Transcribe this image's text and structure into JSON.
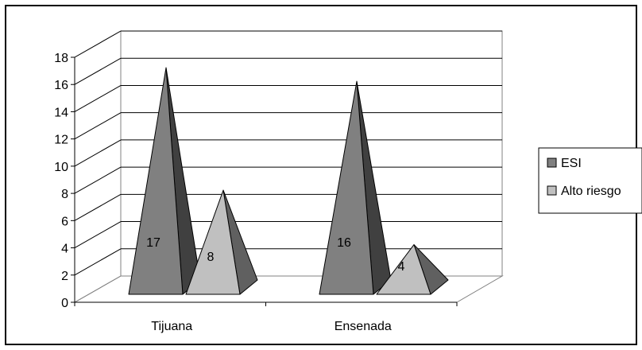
{
  "chart_data": {
    "type": "bar",
    "bar_shape": "pyramid-3d",
    "categories": [
      "Tijuana",
      "Ensenada"
    ],
    "series": [
      {
        "name": "ESI",
        "values": [
          17,
          16
        ],
        "color": "#808080",
        "side_color": "#404040"
      },
      {
        "name": "Alto riesgo",
        "values": [
          8,
          4
        ],
        "color": "#c0c0c0",
        "side_color": "#606060"
      }
    ],
    "ylim": [
      0,
      18
    ],
    "yticks": [
      0,
      2,
      4,
      6,
      8,
      10,
      12,
      14,
      16,
      18
    ],
    "grid": true,
    "legend_position": "right",
    "data_labels": true
  }
}
